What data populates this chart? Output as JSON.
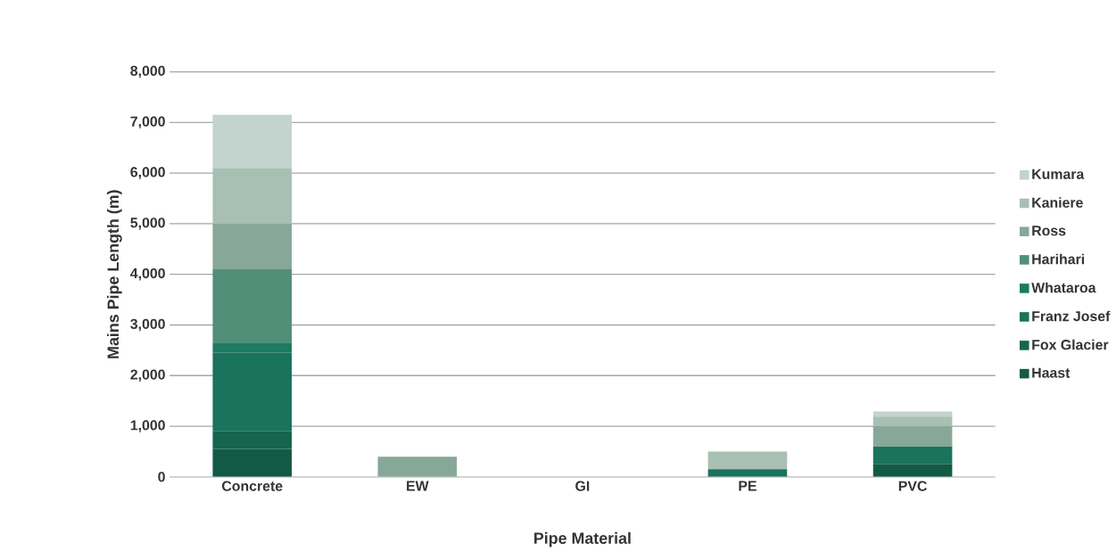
{
  "chart_data": {
    "type": "bar",
    "stacked": true,
    "xlabel": "Pipe Material",
    "ylabel": "Mains Pipe Length (m)",
    "categories": [
      "Concrete",
      "EW",
      "GI",
      "PE",
      "PVC"
    ],
    "series": [
      {
        "name": "Haast",
        "color": "#135a45",
        "values": [
          550,
          0,
          0,
          0,
          250
        ]
      },
      {
        "name": "Fox Glacier",
        "color": "#17654f",
        "values": [
          350,
          0,
          0,
          0,
          0
        ]
      },
      {
        "name": "Franz Josef",
        "color": "#1a735c",
        "values": [
          1550,
          0,
          0,
          150,
          350
        ]
      },
      {
        "name": "Whataroa",
        "color": "#1e7a61",
        "values": [
          200,
          0,
          0,
          0,
          0
        ]
      },
      {
        "name": "Harihari",
        "color": "#518f78",
        "values": [
          1450,
          0,
          0,
          0,
          0
        ]
      },
      {
        "name": "Ross",
        "color": "#87a898",
        "values": [
          900,
          400,
          0,
          0,
          400
        ]
      },
      {
        "name": "Kaniere",
        "color": "#a8bfb4",
        "values": [
          1100,
          0,
          0,
          350,
          190
        ]
      },
      {
        "name": "Kumara",
        "color": "#c3d3cd",
        "values": [
          1050,
          0,
          0,
          0,
          100
        ]
      }
    ],
    "ylim": [
      0,
      8000
    ],
    "yticks": [
      {
        "value": 0,
        "label": "0"
      },
      {
        "value": 1000,
        "label": "1,000"
      },
      {
        "value": 2000,
        "label": "2,000"
      },
      {
        "value": 3000,
        "label": "3,000"
      },
      {
        "value": 4000,
        "label": "4,000"
      },
      {
        "value": 5000,
        "label": "5,000"
      },
      {
        "value": 6000,
        "label": "6,000"
      },
      {
        "value": 7000,
        "label": "7,000"
      },
      {
        "value": 8000,
        "label": "8,000"
      }
    ],
    "grid": "y",
    "legend": "right"
  }
}
